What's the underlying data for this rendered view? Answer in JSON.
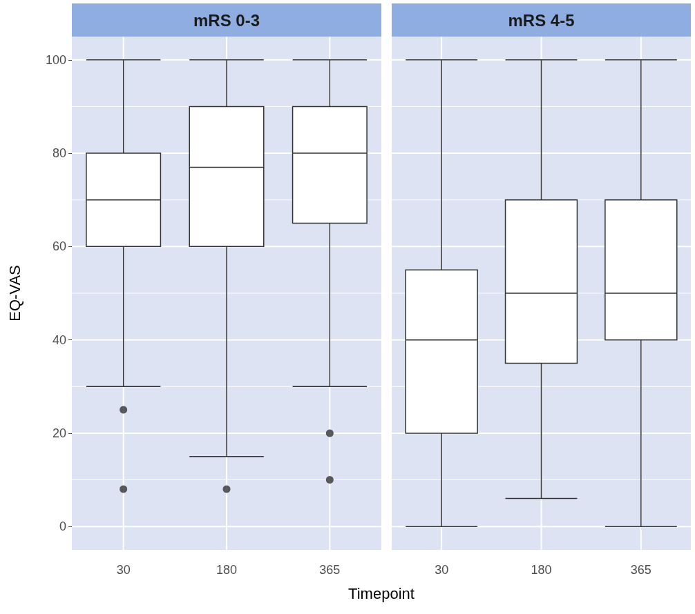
{
  "chart_data": [
    {
      "type": "box",
      "title": "mRS 0-3",
      "xlabel": "Timepoint",
      "ylabel": "EQ-VAS",
      "categories": [
        "30",
        "180",
        "365"
      ],
      "ylim": [
        -5,
        105
      ],
      "yticks": [
        0,
        20,
        40,
        60,
        80,
        100
      ],
      "grid": true,
      "marker": "circle",
      "color": "#ffffff",
      "boxes": [
        {
          "low": 30,
          "q1": 60,
          "median": 70,
          "q3": 80,
          "high": 100,
          "outliers": [
            25,
            8
          ]
        },
        {
          "low": 15,
          "q1": 60,
          "median": 77,
          "q3": 90,
          "high": 100,
          "outliers": [
            8
          ]
        },
        {
          "low": 30,
          "q1": 65,
          "median": 80,
          "q3": 90,
          "high": 100,
          "outliers": [
            20,
            10
          ]
        }
      ]
    },
    {
      "type": "box",
      "title": "mRS 4-5",
      "categories": [
        "30",
        "180",
        "365"
      ],
      "ylim": [
        -5,
        105
      ],
      "yticks": [
        0,
        20,
        40,
        60,
        80,
        100
      ],
      "grid": true,
      "marker": "circle",
      "color": "#ffffff",
      "tick_labels": "x",
      "boxes": [
        {
          "low": 0,
          "q1": 20,
          "median": 40,
          "q3": 55,
          "high": 100
        },
        {
          "low": 6,
          "q1": 35,
          "median": 50,
          "q3": 70,
          "high": 100
        },
        {
          "low": 0,
          "q1": 40,
          "median": 50,
          "q3": 70,
          "high": 100
        }
      ]
    }
  ]
}
